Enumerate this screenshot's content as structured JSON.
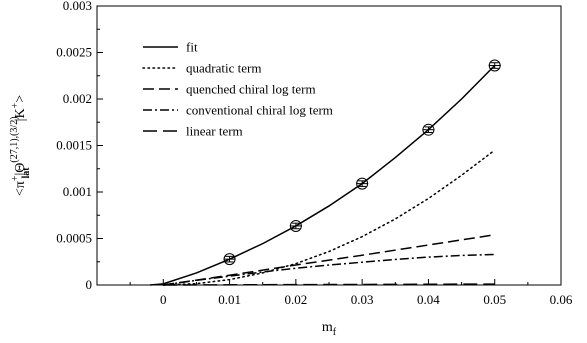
{
  "chart_data": {
    "type": "line",
    "xlabel": "m",
    "xlabel_sub": "f",
    "ylabel": {
      "prefix": "<π",
      "sup1": "+",
      "mid": "|Θ",
      "sup2": "(27,1),(3/2)",
      "sub2": "lat",
      "mid2": "|K",
      "sup3": "+",
      "suffix": ">"
    },
    "xlim": [
      -0.01,
      0.06
    ],
    "ylim": [
      0,
      0.003
    ],
    "x_ticks": [
      0,
      0.01,
      0.02,
      0.03,
      0.04,
      0.05,
      0.06
    ],
    "x_tick_labels": [
      "0",
      "0.01",
      "0.02",
      "0.03",
      "0.04",
      "0.05",
      "0.06"
    ],
    "y_ticks": [
      0,
      0.0005,
      0.001,
      0.0015,
      0.002,
      0.0025,
      0.003
    ],
    "y_tick_labels": [
      "0",
      "0.0005",
      "0.001",
      "0.0015",
      "0.002",
      "0.0025",
      "0.003"
    ],
    "legend_position": "top-left",
    "points": {
      "x": [
        0.01,
        0.02,
        0.03,
        0.04,
        0.05
      ],
      "y": [
        0.000278,
        0.000635,
        0.00109,
        0.00167,
        0.00236
      ],
      "err": [
        3e-05,
        3e-05,
        3e-05,
        3e-05,
        3e-05
      ]
    },
    "series": [
      {
        "name": "fit",
        "style": "solid",
        "x": [
          -0.002,
          0,
          0.005,
          0.01,
          0.015,
          0.02,
          0.025,
          0.03,
          0.035,
          0.04,
          0.045,
          0.05
        ],
        "y": [
          0,
          1.2e-05,
          0.00013,
          0.000278,
          0.000445,
          0.000635,
          0.00085,
          0.00109,
          0.00137,
          0.00167,
          0.002,
          0.00236
        ]
      },
      {
        "name": "quadratic term",
        "style": "dotted",
        "x": [
          0,
          0.005,
          0.01,
          0.015,
          0.02,
          0.025,
          0.03,
          0.035,
          0.04,
          0.045,
          0.05
        ],
        "y": [
          0,
          1.45e-05,
          5.8e-05,
          0.00013,
          0.00023,
          0.00036,
          0.00052,
          0.00071,
          0.00093,
          0.00118,
          0.00145
        ]
      },
      {
        "name": "quenched chiral log term",
        "style": "dashed",
        "x": [
          0,
          0.01,
          0.02,
          0.03,
          0.04,
          0.05
        ],
        "y": [
          0,
          0.000105,
          0.000215,
          0.00032,
          0.00043,
          0.00054
        ]
      },
      {
        "name": "conventional chiral log term",
        "style": "dashdot",
        "x": [
          0,
          0.005,
          0.01,
          0.015,
          0.02,
          0.025,
          0.03,
          0.035,
          0.04,
          0.045,
          0.05
        ],
        "y": [
          0,
          5e-05,
          9.5e-05,
          0.00014,
          0.00018,
          0.000215,
          0.000245,
          0.000275,
          0.0003,
          0.000318,
          0.000328
        ]
      },
      {
        "name": "linear term",
        "style": "longdash",
        "x": [
          0,
          0.05
        ],
        "y": [
          0,
          1e-05
        ]
      }
    ]
  }
}
